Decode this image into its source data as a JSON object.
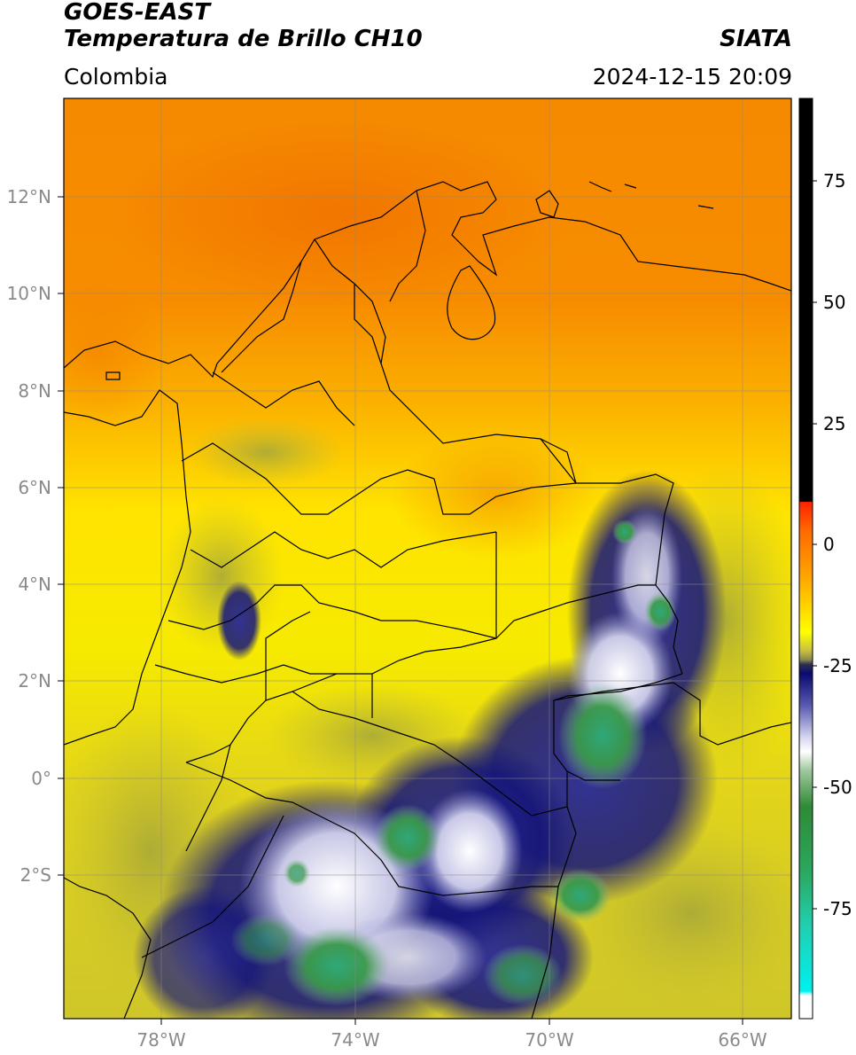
{
  "header": {
    "title_line1": "GOES-EAST",
    "title_line2": "Temperatura de Brillo CH10",
    "subtitle": "Colombia",
    "source": "SIATA",
    "datetime": "2024-12-15 20:09"
  },
  "map": {
    "lon_ticks": [
      "78°W",
      "74°W",
      "70°W",
      "66°W"
    ],
    "lat_ticks": [
      "12°N",
      "10°N",
      "8°N",
      "6°N",
      "4°N",
      "2°N",
      "0°",
      "2°S"
    ],
    "gridlines": true
  },
  "colorbar": {
    "tick_labels": [
      "75",
      "50",
      "25",
      "0",
      "-25",
      "-50",
      "-75"
    ],
    "colors": {
      "black": "#000000",
      "red": "#ff2a00",
      "orange": "#ff9900",
      "yellow": "#ffee00",
      "olive": "#a8a830",
      "navy": "#101070",
      "white": "#ffffff",
      "green": "#2e8b3a",
      "cyan": "#00e6e6"
    }
  }
}
